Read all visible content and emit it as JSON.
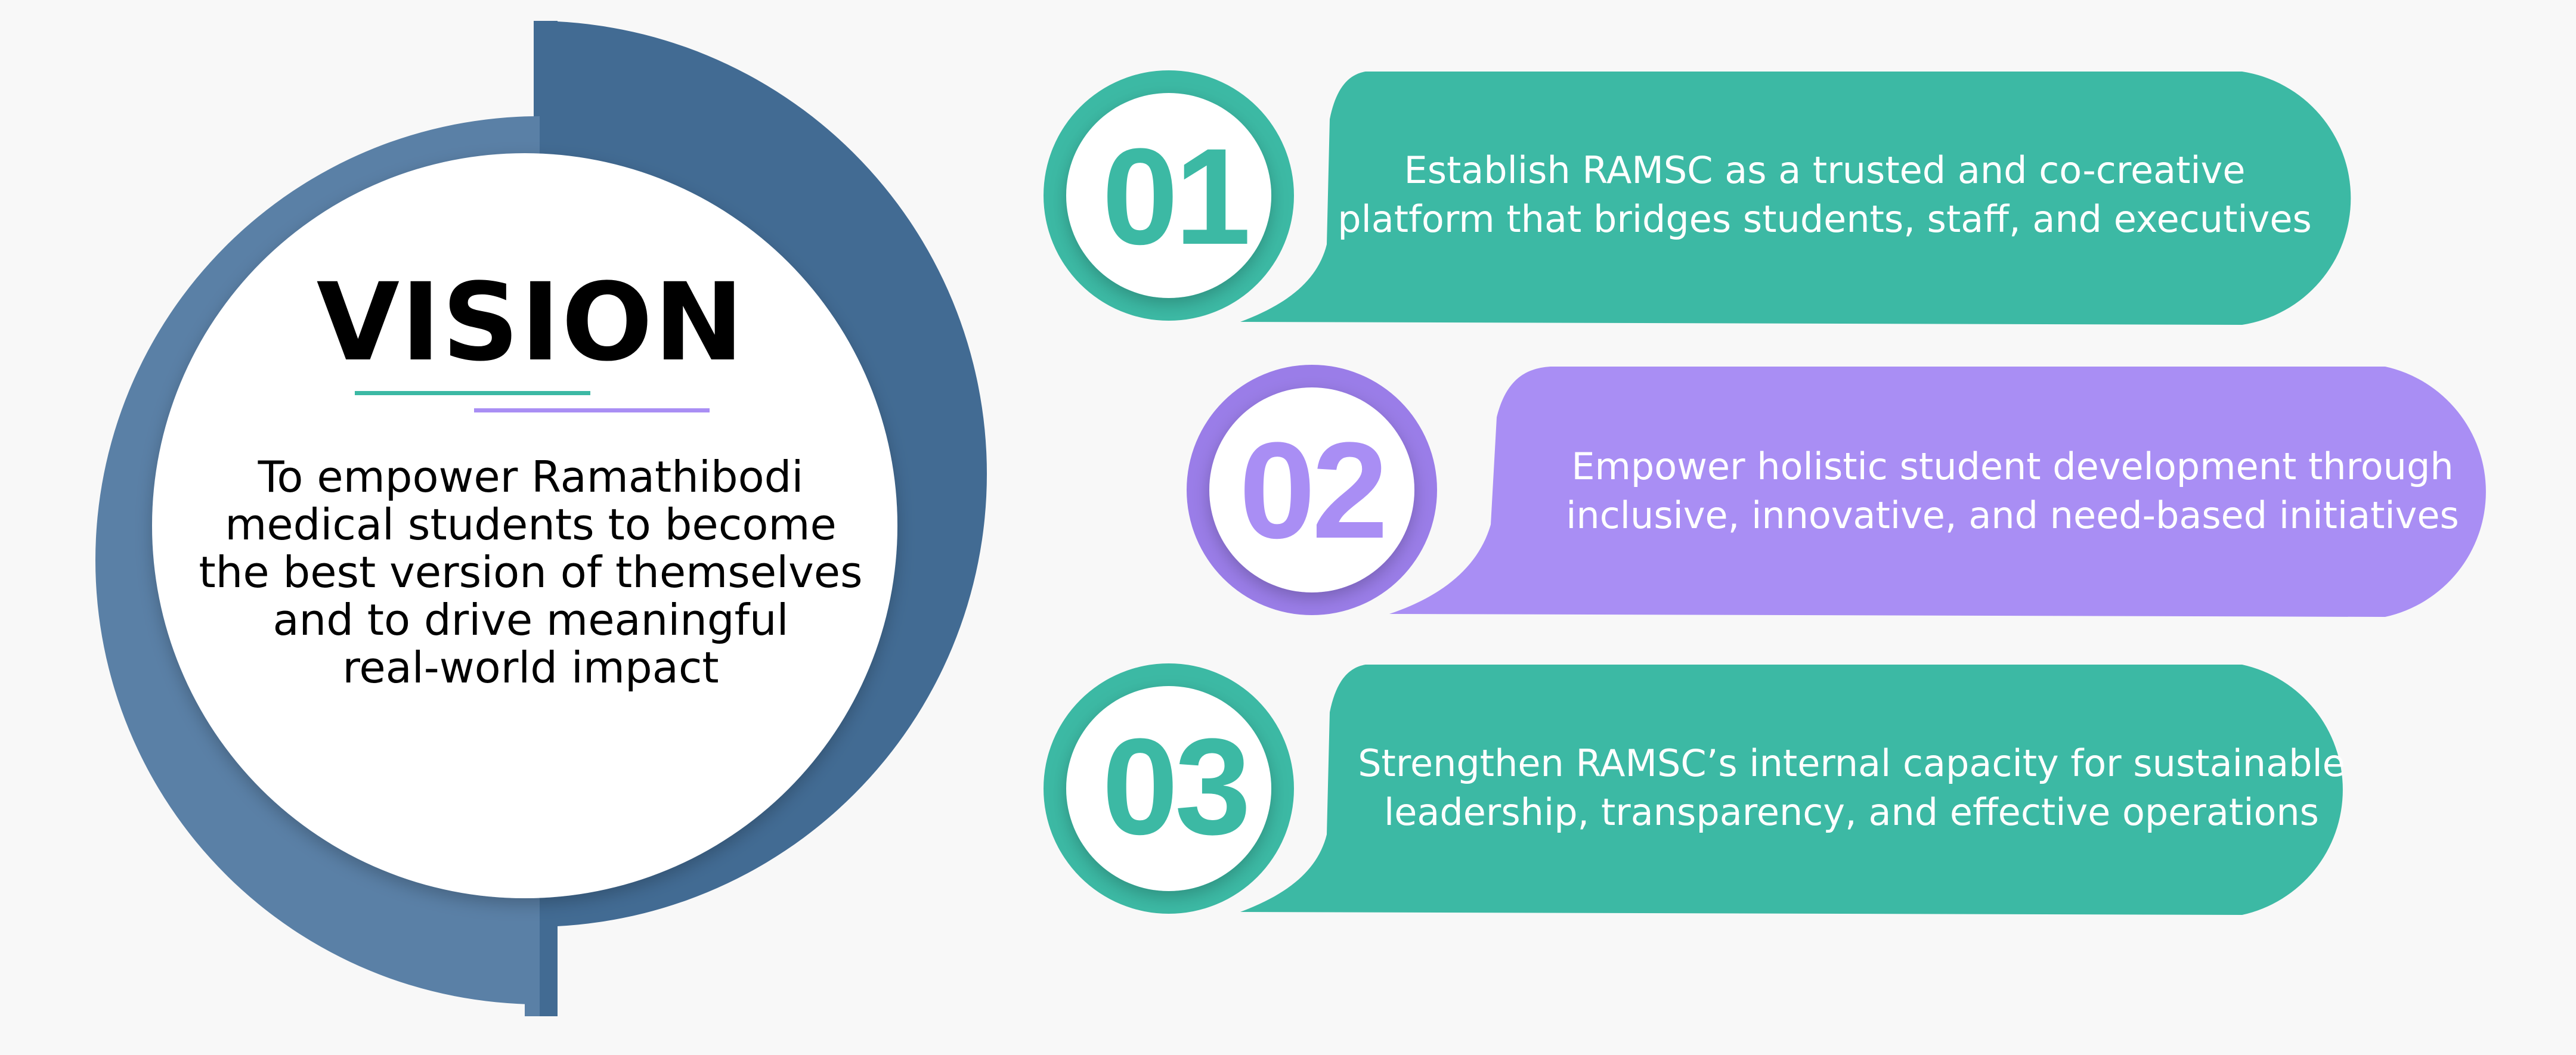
{
  "vision": {
    "title": "VISION",
    "body_lines": [
      "To empower Ramathibodi",
      "medical students to become",
      "the best version of themselves",
      "and to drive meaningful",
      "real-world impact"
    ]
  },
  "goals": [
    {
      "number": "01",
      "lines": [
        "Establish RAMSC as a trusted and co-creative",
        "platform that bridges students, staff, and executives"
      ]
    },
    {
      "number": "02",
      "lines": [
        "Empower holistic student development through",
        "inclusive, innovative, and need-based initiatives"
      ]
    },
    {
      "number": "03",
      "lines": [
        "Strengthen RAMSC’s internal capacity for sustainable",
        "leadership, transparency, and effective operations"
      ]
    }
  ],
  "colors": {
    "background": "#f8f8f8",
    "navy_dark": "#426b93",
    "navy_light": "#5a80a6",
    "teal": "#3cb9a4",
    "purple": "#a98ef4",
    "purple_ring": "#9a7de8"
  }
}
